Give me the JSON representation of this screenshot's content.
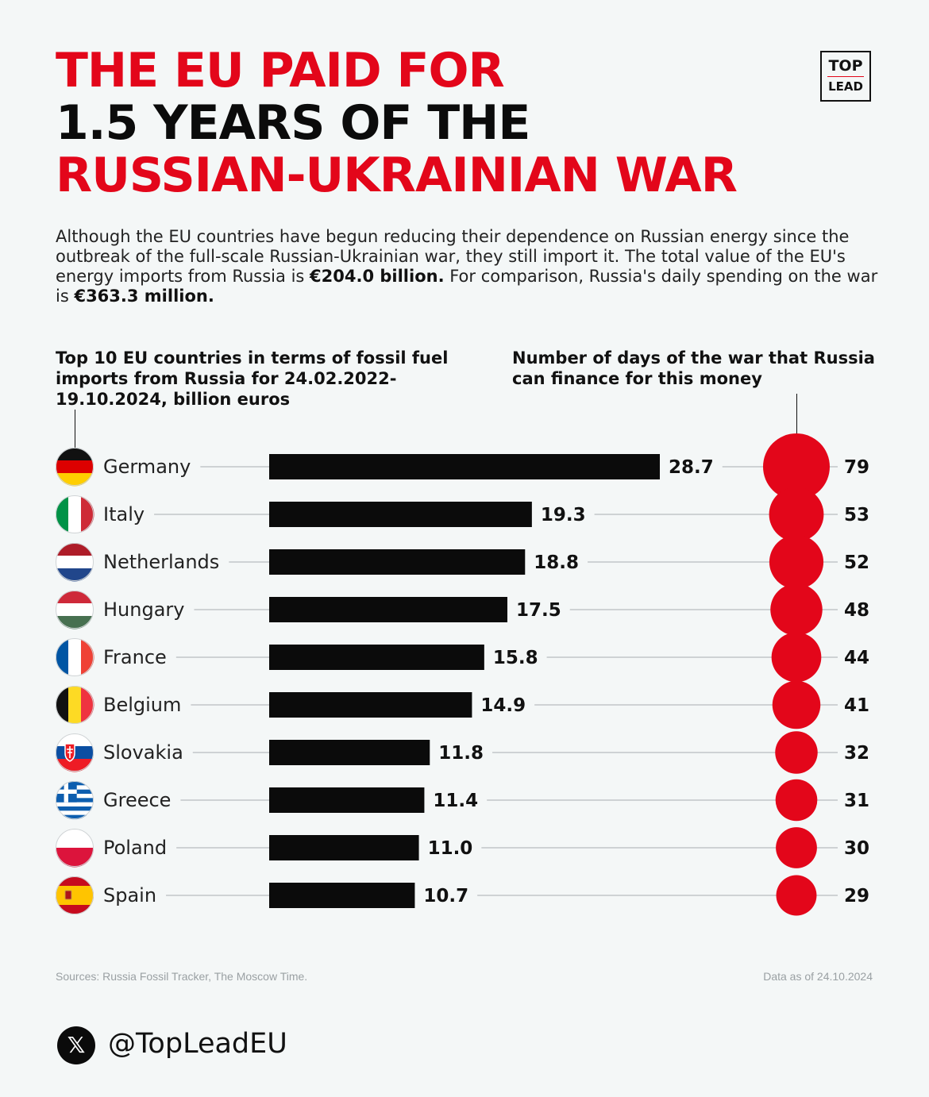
{
  "title": {
    "line1": "THE EU PAID FOR",
    "line2": "1.5 YEARS OF THE",
    "line3": "RUSSIAN-UKRAINIAN WAR"
  },
  "logo": {
    "top": "TOP",
    "bottom": "LEAD"
  },
  "intro": {
    "part1": "Although the EU countries have begun reducing their dependence on Russian energy since the outbreak of the full-scale Russian-Ukrainian war, they still import it. The total value of the EU's energy imports from Russia is ",
    "bold1": "€204.0 billion.",
    "part2": " For comparison, Russia's daily spending on the war is ",
    "bold2": "€363.3 million."
  },
  "headers": {
    "left": "Top 10 EU countries in terms of fossil fuel imports from Russia for 24.02.2022-19.10.2024, billion euros",
    "right": "Number of days of the war that Russia can finance for this money"
  },
  "colors": {
    "accent": "#e3061a",
    "bar": "#0b0b0b",
    "line": "#b8bcbe",
    "background": "#f4f7f7"
  },
  "chart_data": {
    "type": "bar",
    "orientation": "horizontal",
    "categories": [
      "Germany",
      "Italy",
      "Netherlands",
      "Hungary",
      "France",
      "Belgium",
      "Slovakia",
      "Greece",
      "Poland",
      "Spain"
    ],
    "series": [
      {
        "values": [
          28.7,
          19.3,
          18.8,
          17.5,
          15.8,
          14.9,
          11.8,
          11.4,
          11.0,
          10.7
        ]
      },
      {
        "values": [
          79,
          53,
          52,
          48,
          44,
          41,
          32,
          31,
          30,
          29
        ]
      }
    ],
    "value_labels": [
      "28.7",
      "19.3",
      "18.8",
      "17.5",
      "15.8",
      "14.9",
      "11.8",
      "11.4",
      "11.0",
      "10.7"
    ],
    "flag_icons": [
      "germany-flag-icon",
      "italy-flag-icon",
      "netherlands-flag-icon",
      "hungary-flag-icon",
      "france-flag-icon",
      "belgium-flag-icon",
      "slovakia-flag-icon",
      "greece-flag-icon",
      "poland-flag-icon",
      "spain-flag-icon"
    ]
  },
  "footer": {
    "sources": "Sources: Russia Fossil Tracker, The Moscow Time.",
    "date": "Data as of 24.10.2024",
    "handle": "@TopLeadEU",
    "x_icon": "x-logo-icon"
  }
}
